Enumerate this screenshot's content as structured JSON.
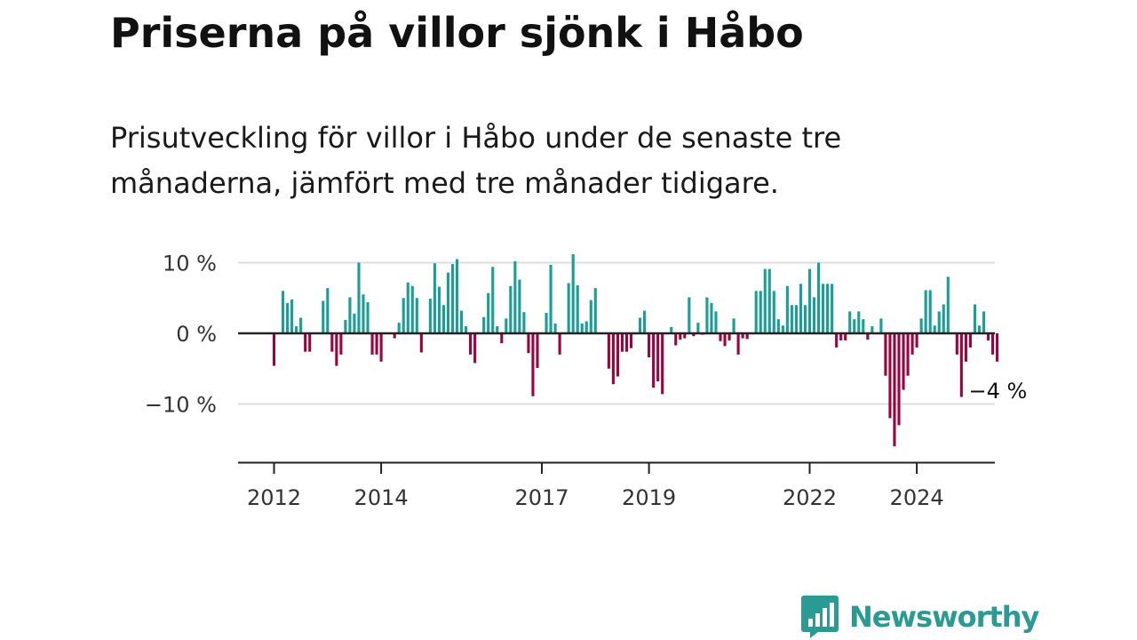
{
  "header": {
    "title": "Priserna på villor sjönk i Håbo",
    "subtitle": "Prisutveckling för villor i Håbo under de senaste tre månaderna, jämfört med tre månader tidigare."
  },
  "chart_data": {
    "type": "bar",
    "title": "Priserna på villor sjönk i Håbo",
    "subtitle": "Prisutveckling för villor i Håbo under de senaste tre månaderna, jämfört med tre månader tidigare.",
    "xlabel": "",
    "ylabel": "",
    "unit": "%",
    "start": "2012-01",
    "ylim": [
      -18,
      11
    ],
    "yticks": [
      10,
      0,
      -10
    ],
    "ytick_labels": [
      "10 %",
      "0 %",
      "−10 %"
    ],
    "xticks": [
      2012,
      2014,
      2017,
      2019,
      2022,
      2024
    ],
    "grid": true,
    "positive_color": "#1a9e96",
    "negative_color": "#99063f",
    "values": [
      -4.6,
      0,
      6.0,
      4.3,
      4.8,
      1.0,
      2.2,
      -2.6,
      -2.6,
      0,
      0,
      4.6,
      6.4,
      -2.6,
      -4.6,
      -3.0,
      1.9,
      5.1,
      2.8,
      10.0,
      5.5,
      4.4,
      -3.0,
      -3.0,
      -4.0,
      0,
      0,
      -0.7,
      1.5,
      5.0,
      7.2,
      6.7,
      5.0,
      -2.7,
      0,
      4.9,
      9.9,
      6.6,
      4.0,
      8.6,
      9.8,
      10.5,
      3.2,
      1.0,
      -3.0,
      -4.2,
      0,
      2.3,
      5.7,
      9.4,
      1.0,
      -1.4,
      2.1,
      6.7,
      10.2,
      7.6,
      3.0,
      -2.8,
      -8.9,
      -4.9,
      0,
      2.9,
      9.7,
      1.4,
      -3.0,
      0,
      7.1,
      11.2,
      6.8,
      1.4,
      1.7,
      4.7,
      6.4,
      0,
      0,
      -5.0,
      -7.2,
      -6.1,
      -2.6,
      -2.6,
      -2.1,
      0,
      2.2,
      3.2,
      -3.4,
      -7.7,
      -6.8,
      -8.6,
      0,
      0.9,
      -1.7,
      -0.9,
      -0.7,
      5.1,
      -0.4,
      1.5,
      -0.2,
      5.1,
      4.3,
      3.1,
      -1.1,
      -1.8,
      -1.0,
      2.1,
      -3.0,
      -0.7,
      -0.8,
      0,
      6.0,
      6.0,
      9.1,
      9.1,
      6.0,
      2.0,
      1.1,
      6.7,
      4.0,
      4.0,
      7.0,
      4.0,
      9.1,
      5.1,
      10.0,
      7.0,
      7.0,
      7.0,
      -2.0,
      -1.0,
      -1.0,
      3.1,
      2.0,
      3.1,
      2.0,
      -0.9,
      1.0,
      0,
      2.1,
      -6.0,
      -12.0,
      -16.0,
      -13.0,
      -8.0,
      -6.0,
      -3.0,
      -2.0,
      2.1,
      6.1,
      6.1,
      1.1,
      3.1,
      4.1,
      8.0,
      0,
      -3.0,
      -9.0,
      -4.0,
      -2.0,
      4.1,
      1.1,
      3.1,
      -1.0,
      -3.0,
      -4.0
    ],
    "annotation": {
      "text": "−4 %",
      "value": -4
    }
  },
  "brand": {
    "name": "Newsworthy",
    "color": "#2a9a93",
    "icon": "bar-chart-speech-bubble-icon"
  }
}
